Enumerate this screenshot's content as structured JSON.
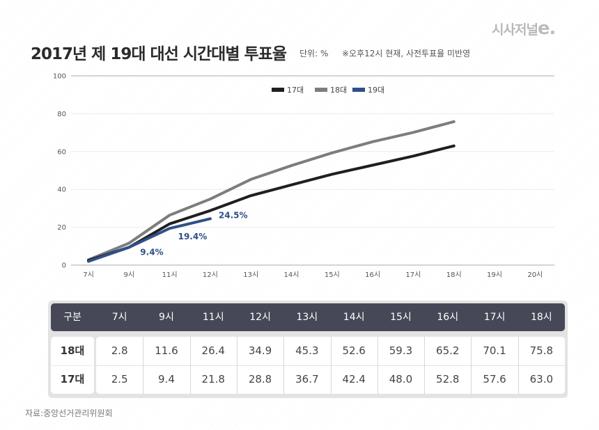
{
  "header": {
    "title": "2017년 제 19대 대선 시간대별 투표율",
    "unit": "단위: %",
    "note": "※오후12시 현재, 사전투표율 미반영",
    "logo_text": "시사저널",
    "logo_suffix": "e."
  },
  "chart_data": {
    "type": "line",
    "title": "2017년 제 19대 대선 시간대별 투표율",
    "xlabel": "",
    "ylabel": "단위: %",
    "categories": [
      "7시",
      "9시",
      "11시",
      "12시",
      "13시",
      "14시",
      "15시",
      "16시",
      "17시",
      "18시",
      "19시",
      "20시"
    ],
    "ylim": [
      0,
      100
    ],
    "yticks": [
      0,
      20,
      40,
      60,
      80,
      100
    ],
    "grid": true,
    "legend_position": "top-center",
    "series": [
      {
        "name": "17대",
        "color": "#1f1f1f",
        "values": [
          2.5,
          9.4,
          21.8,
          28.8,
          36.7,
          42.4,
          48.0,
          52.8,
          57.6,
          63.0,
          null,
          null
        ]
      },
      {
        "name": "18대",
        "color": "#7d7d7d",
        "values": [
          2.8,
          11.6,
          26.4,
          34.9,
          45.3,
          52.6,
          59.3,
          65.2,
          70.1,
          75.8,
          null,
          null
        ]
      },
      {
        "name": "19대",
        "color": "#2f5089",
        "values": [
          2.0,
          9.4,
          19.4,
          24.5,
          null,
          null,
          null,
          null,
          null,
          null,
          null,
          null
        ]
      }
    ],
    "annotations": [
      {
        "series": "19대",
        "category": "9시",
        "text": "9.4%"
      },
      {
        "series": "19대",
        "category": "11시",
        "text": "19.4%"
      },
      {
        "series": "19대",
        "category": "12시",
        "text": "24.5%"
      }
    ]
  },
  "table": {
    "corner_label": "구분",
    "columns": [
      "7시",
      "9시",
      "11시",
      "12시",
      "13시",
      "14시",
      "15시",
      "16시",
      "17시",
      "18시"
    ],
    "rows": [
      {
        "label": "18대",
        "values": [
          "2.8",
          "11.6",
          "26.4",
          "34.9",
          "45.3",
          "52.6",
          "59.3",
          "65.2",
          "70.1",
          "75.8"
        ]
      },
      {
        "label": "17대",
        "values": [
          "2.5",
          "9.4",
          "21.8",
          "28.8",
          "36.7",
          "42.4",
          "48.0",
          "52.8",
          "57.6",
          "63.0"
        ]
      }
    ]
  },
  "footer": {
    "source": "자료:중앙선거관리위원회"
  }
}
